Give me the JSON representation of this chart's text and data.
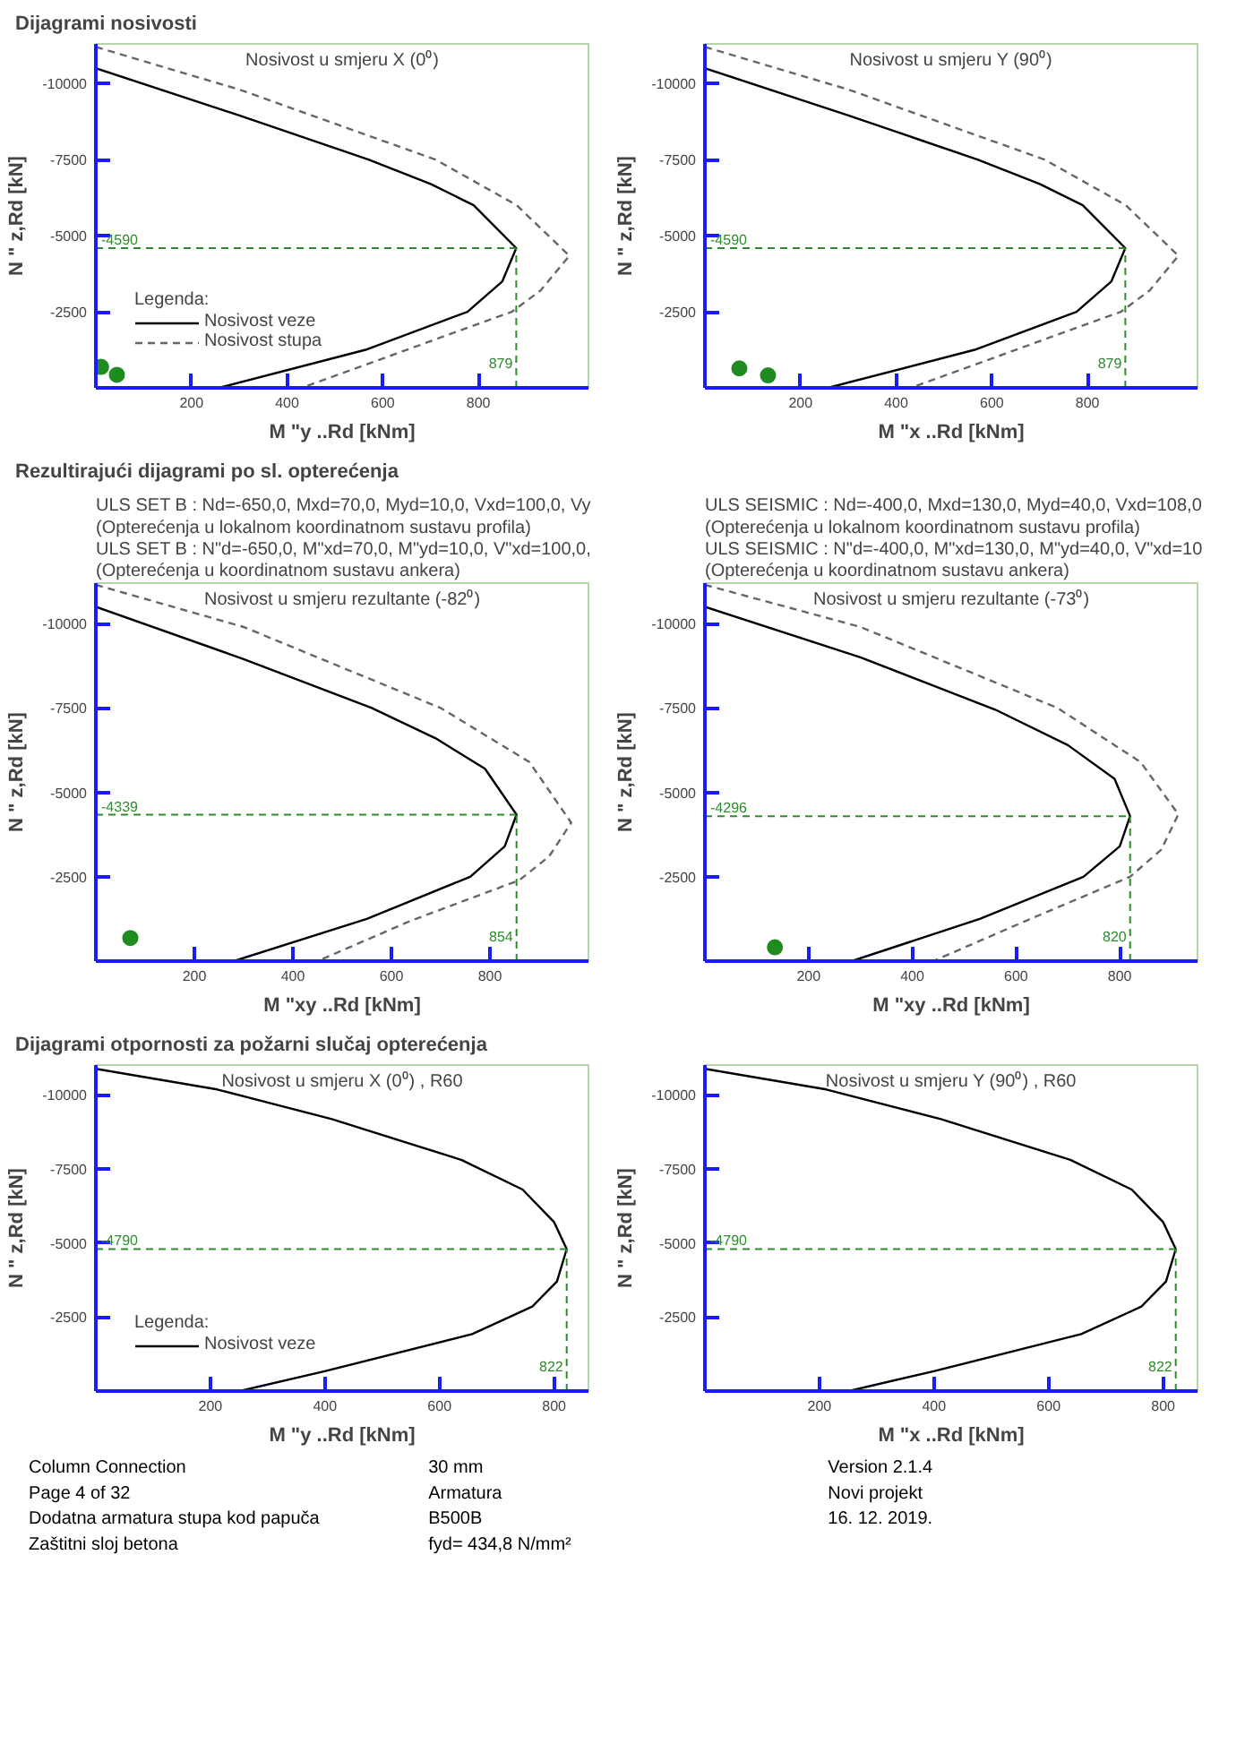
{
  "chart_data": [
    {
      "type": "line",
      "title": "Nosivost u smjeru X (0⁰)",
      "annotations": [
        "Dijagrami nosivosti"
      ],
      "xlabel": "M \"y ..Rd [kNm]",
      "ylabel": "N \" z,Rd [kN]",
      "legend": "left",
      "legend_title": "Legenda:",
      "xlim": [
        0,
        1030
      ],
      "ylim": [
        0,
        -11300
      ],
      "xticks": [
        200,
        400,
        600,
        800
      ],
      "yticks": [
        -10000,
        -7500,
        -5000,
        -2500
      ],
      "grid": false,
      "ref_lines": [
        {
          "axis": "y",
          "value": -4590,
          "label": "-4590",
          "color": "#2e8b2e",
          "line_style": "dashed"
        },
        {
          "axis": "x",
          "value": 879,
          "label": "879",
          "color": "#2e8b2e",
          "line_style": "dashed"
        }
      ],
      "series": [
        {
          "name": "Nosivost veze",
          "type": "line",
          "color": "#000000",
          "line_style": "solid",
          "x": [
            0,
            300,
            570,
            700,
            790,
            879,
            850,
            777,
            564,
            257
          ],
          "values": [
            -10500,
            -8950,
            -7500,
            -6700,
            -6000,
            -4590,
            -3500,
            -2500,
            -1250,
            0
          ]
        },
        {
          "name": "Nosivost stupa",
          "type": "line",
          "color": "#666666",
          "line_style": "dashed",
          "x": [
            0,
            300,
            710,
            880,
            990,
            930,
            870,
            650,
            430
          ],
          "values": [
            -11200,
            -9800,
            -7500,
            -6000,
            -4340,
            -3200,
            -2500,
            -1250,
            0
          ]
        },
        {
          "type": "scatter",
          "color": "#1e8c1e",
          "marker": "circle",
          "x": [
            11,
            44
          ],
          "values": [
            -690,
            -430
          ]
        }
      ]
    },
    {
      "type": "line",
      "title": "Nosivost u smjeru Y (90⁰)",
      "xlabel": "M \"x ..Rd [kNm]",
      "ylabel": "N \" z,Rd [kN]",
      "xlim": [
        0,
        1030
      ],
      "ylim": [
        0,
        -11300
      ],
      "xticks": [
        200,
        400,
        600,
        800
      ],
      "yticks": [
        -10000,
        -7500,
        -5000,
        -2500
      ],
      "grid": false,
      "ref_lines": [
        {
          "axis": "y",
          "value": -4590,
          "label": "-4590",
          "color": "#2e8b2e",
          "line_style": "dashed"
        },
        {
          "axis": "x",
          "value": 879,
          "label": "879",
          "color": "#2e8b2e",
          "line_style": "dashed"
        }
      ],
      "series": [
        {
          "type": "line",
          "color": "#000000",
          "line_style": "solid",
          "x": [
            0,
            300,
            570,
            700,
            790,
            879,
            850,
            777,
            564,
            257
          ],
          "values": [
            -10500,
            -8950,
            -7500,
            -6700,
            -6000,
            -4590,
            -3500,
            -2500,
            -1250,
            0
          ]
        },
        {
          "type": "line",
          "color": "#666666",
          "line_style": "dashed",
          "x": [
            0,
            300,
            710,
            880,
            990,
            930,
            870,
            650,
            430
          ],
          "values": [
            -11200,
            -9800,
            -7500,
            -6000,
            -4340,
            -3200,
            -2500,
            -1250,
            0
          ]
        },
        {
          "type": "scatter",
          "color": "#1e8c1e",
          "marker": "circle",
          "x": [
            72,
            132
          ],
          "values": [
            -640,
            -410
          ]
        }
      ]
    },
    {
      "type": "line",
      "title": "Nosivost u smjeru rezultante (-82⁰)",
      "annotations": [
        "Rezultirajući dijagrami po sl. opterećenja"
      ],
      "subtitle": "ULS SET B : Nd=-650,0, Mxd=70,0, Myd=10,0, Vxd=100,0, Vy\n(Opterećenja u lokalnom koordinatnom sustavu profila)\nULS SET B : N\"d=-650,0, M\"xd=70,0, M\"yd=10,0, V\"xd=100,0,\n(Opterećenja u koordinatnom sustavu ankera)",
      "xlabel": "M \"xy ..Rd [kNm]",
      "ylabel": "N \" z,Rd [kN]",
      "xlim": [
        0,
        1000
      ],
      "ylim": [
        0,
        -11200
      ],
      "xticks": [
        200,
        400,
        600,
        800
      ],
      "yticks": [
        -10000,
        -7500,
        -5000,
        -2500
      ],
      "grid": false,
      "ref_lines": [
        {
          "axis": "y",
          "value": -4339,
          "label": "-4339",
          "color": "#2e8b2e",
          "line_style": "dashed"
        },
        {
          "axis": "x",
          "value": 854,
          "label": "854",
          "color": "#2e8b2e",
          "line_style": "dashed"
        }
      ],
      "series": [
        {
          "type": "line",
          "color": "#000000",
          "line_style": "solid",
          "x": [
            0,
            300,
            560,
            690,
            790,
            854,
            830,
            760,
            550,
            280
          ],
          "values": [
            -10500,
            -8950,
            -7500,
            -6600,
            -5700,
            -4339,
            -3400,
            -2500,
            -1250,
            0
          ]
        },
        {
          "type": "line",
          "color": "#666666",
          "line_style": "dashed",
          "x": [
            0,
            300,
            700,
            880,
            965,
            920,
            860,
            640,
            450
          ],
          "values": [
            -11150,
            -9900,
            -7500,
            -5900,
            -4100,
            -3100,
            -2400,
            -1200,
            0
          ]
        },
        {
          "type": "scatter",
          "color": "#1e8c1e",
          "marker": "circle",
          "x": [
            70
          ],
          "values": [
            -685
          ]
        }
      ]
    },
    {
      "type": "line",
      "title": "Nosivost u smjeru rezultante (-73⁰)",
      "subtitle": "ULS SEISMIC : Nd=-400,0, Mxd=130,0, Myd=40,0, Vxd=108,0\n(Opterećenja u lokalnom koordinatnom sustavu profila)\nULS SEISMIC : N\"d=-400,0, M\"xd=130,0, M\"yd=40,0, V\"xd=10\n(Opterećenja u koordinatnom sustavu ankera)",
      "xlabel": "M \"xy ..Rd [kNm]",
      "ylabel": "N \" z,Rd [kN]",
      "xlim": [
        0,
        950
      ],
      "ylim": [
        0,
        -11200
      ],
      "xticks": [
        200,
        400,
        600,
        800
      ],
      "yticks": [
        -10000,
        -7500,
        -5000,
        -2500
      ],
      "grid": false,
      "ref_lines": [
        {
          "axis": "y",
          "value": -4296,
          "label": "-4296",
          "color": "#2e8b2e",
          "line_style": "dashed"
        },
        {
          "axis": "x",
          "value": 820,
          "label": "820",
          "color": "#2e8b2e",
          "line_style": "dashed"
        }
      ],
      "series": [
        {
          "type": "line",
          "color": "#000000",
          "line_style": "solid",
          "x": [
            0,
            300,
            560,
            700,
            790,
            820,
            800,
            730,
            530,
            283
          ],
          "values": [
            -10500,
            -9000,
            -7450,
            -6400,
            -5400,
            -4296,
            -3400,
            -2500,
            -1250,
            0
          ]
        },
        {
          "type": "line",
          "color": "#666666",
          "line_style": "dashed",
          "x": [
            0,
            300,
            680,
            840,
            913,
            880,
            820,
            620,
            440
          ],
          "values": [
            -11150,
            -9900,
            -7500,
            -5900,
            -4350,
            -3300,
            -2500,
            -1200,
            0
          ]
        },
        {
          "type": "scatter",
          "color": "#1e8c1e",
          "marker": "circle",
          "x": [
            135
          ],
          "values": [
            -410
          ]
        }
      ]
    },
    {
      "type": "line",
      "title": "Nosivost u smjeru X (0⁰) , R60",
      "annotations": [
        "Dijagrami otpornosti za požarni slučaj opterećenja"
      ],
      "xlabel": "M \"y ..Rd [kNm]",
      "ylabel": "N \" z,Rd [kN]",
      "legend": "left",
      "legend_title": "Legenda:",
      "xlim": [
        0,
        860
      ],
      "ylim": [
        0,
        -11000
      ],
      "xticks": [
        200,
        400,
        600,
        800
      ],
      "yticks": [
        -10000,
        -7500,
        -5000,
        -2500
      ],
      "grid": false,
      "ref_lines": [
        {
          "axis": "y",
          "value": -4790,
          "label": "-4790",
          "color": "#2e8b2e",
          "line_style": "dashed"
        },
        {
          "axis": "x",
          "value": 822,
          "label": "822",
          "color": "#2e8b2e",
          "line_style": "dashed"
        }
      ],
      "series": [
        {
          "name": "Nosivost veze",
          "type": "line",
          "color": "#000000",
          "line_style": "solid",
          "x": [
            0,
            212,
            412,
            638,
            745,
            800,
            822,
            805,
            762,
            657,
            401,
            251
          ],
          "values": [
            -10870,
            -10175,
            -9175,
            -7800,
            -6800,
            -5700,
            -4790,
            -3700,
            -2850,
            -1925,
            -675,
            0
          ]
        }
      ]
    },
    {
      "type": "line",
      "title": "Nosivost u smjeru Y (90⁰) , R60",
      "xlabel": "M \"x ..Rd [kNm]",
      "ylabel": "N \" z,Rd [kN]",
      "xlim": [
        0,
        860
      ],
      "ylim": [
        0,
        -11000
      ],
      "xticks": [
        200,
        400,
        600,
        800
      ],
      "yticks": [
        -10000,
        -7500,
        -5000,
        -2500
      ],
      "grid": false,
      "ref_lines": [
        {
          "axis": "y",
          "value": -4790,
          "label": "-4790",
          "color": "#2e8b2e",
          "line_style": "dashed"
        },
        {
          "axis": "x",
          "value": 822,
          "label": "822",
          "color": "#2e8b2e",
          "line_style": "dashed"
        }
      ],
      "series": [
        {
          "type": "line",
          "color": "#000000",
          "line_style": "solid",
          "x": [
            0,
            212,
            412,
            638,
            745,
            800,
            822,
            805,
            762,
            657,
            401,
            251
          ],
          "values": [
            -10870,
            -10175,
            -9175,
            -7800,
            -6800,
            -5700,
            -4790,
            -3700,
            -2850,
            -1925,
            -675,
            0
          ]
        }
      ]
    },
    {
      "type": "other",
      "annotations": [
        "Column Connection",
        "Page 4 of 32",
        "Dodatna armatura stupa kod papuča",
        "Zaštitni sloj betona",
        "30 mm",
        "Armatura",
        "B500B",
        "fyd= 434,8 N/mm²",
        "Version 2.1.4",
        "Novi projekt",
        "16. 12. 2019."
      ]
    }
  ]
}
